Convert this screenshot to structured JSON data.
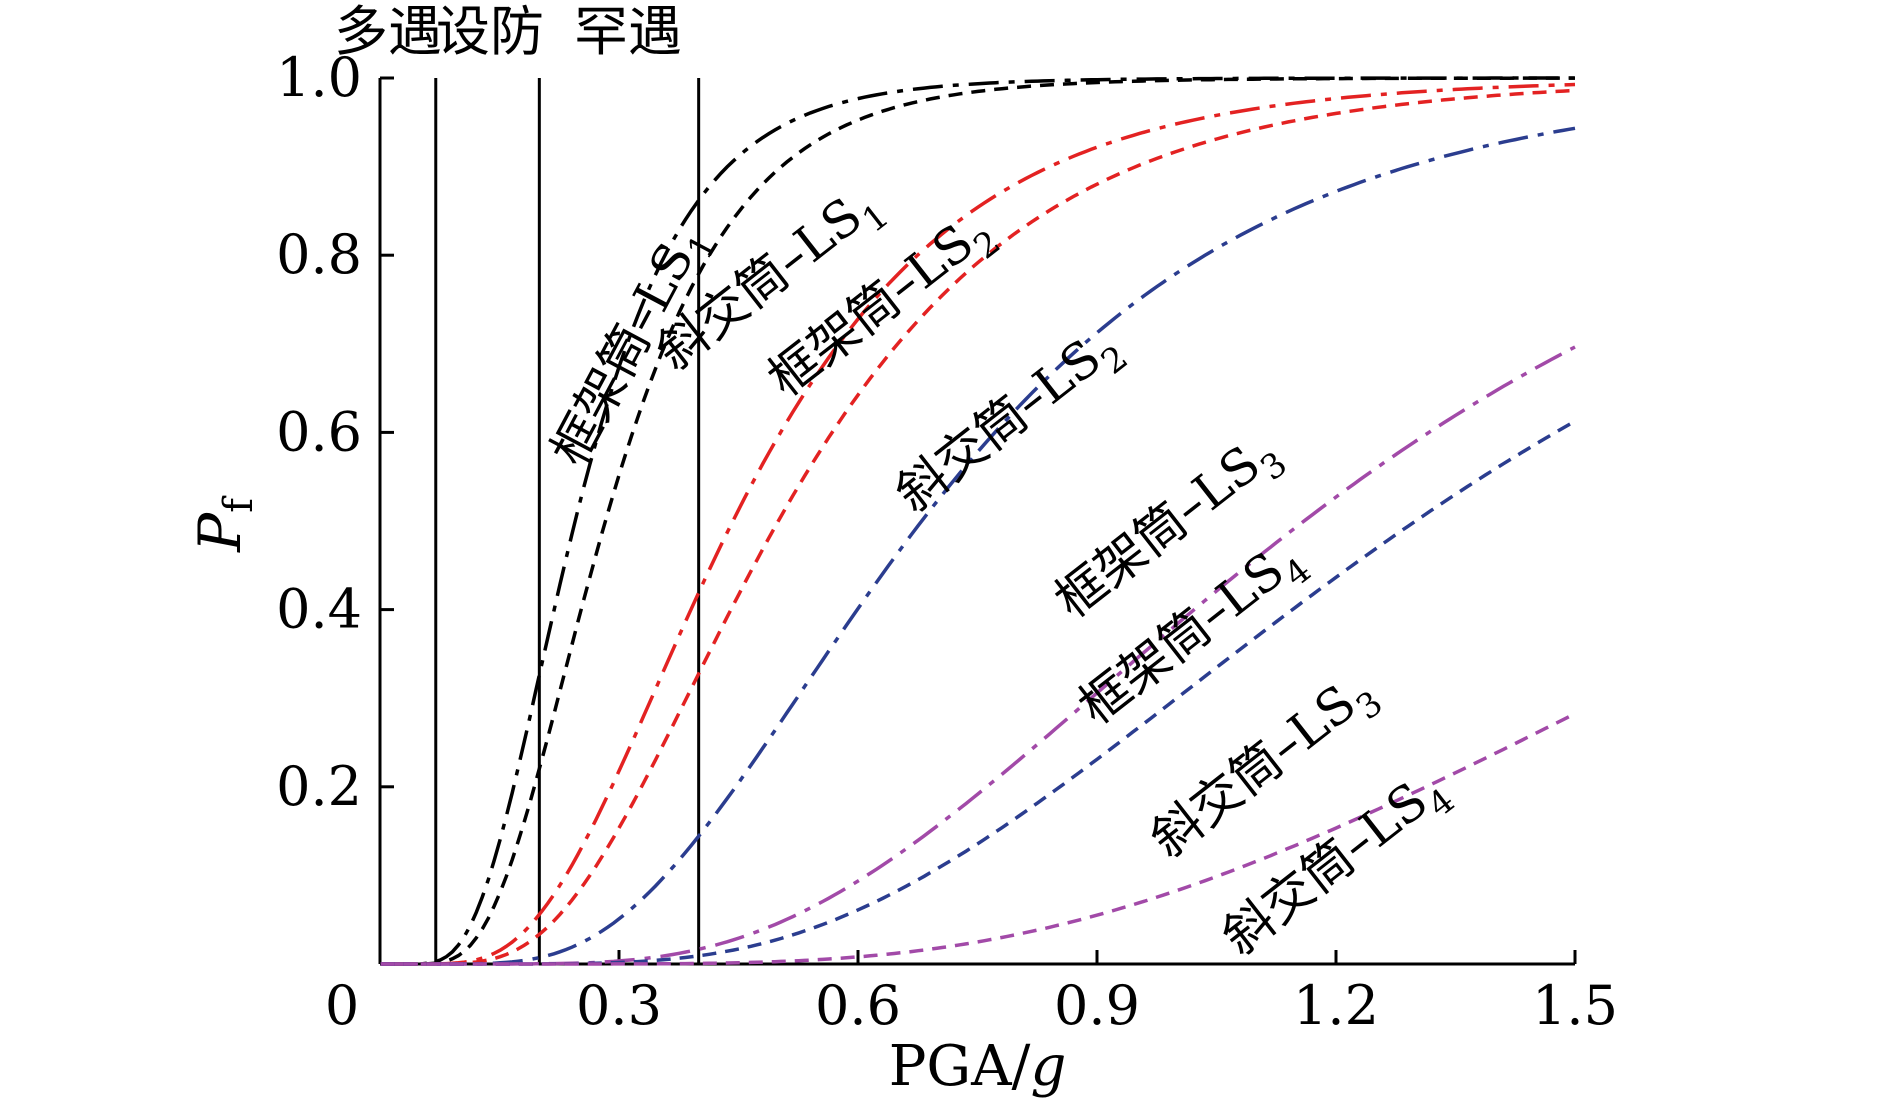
{
  "chart_data": {
    "type": "line",
    "title": "",
    "xlabel": "PGA/",
    "xlabel_italic": "g",
    "ylabel": "P",
    "ylabel_sub": "f",
    "xlim": [
      0,
      1.5
    ],
    "ylim": [
      0,
      1.0
    ],
    "x_ticks": [
      {
        "value": 0,
        "label": "0"
      },
      {
        "value": 0.3,
        "label": "0.3"
      },
      {
        "value": 0.6,
        "label": "0.6"
      },
      {
        "value": 0.9,
        "label": "0.9"
      },
      {
        "value": 1.2,
        "label": "1.2"
      },
      {
        "value": 1.5,
        "label": "1.5"
      }
    ],
    "y_ticks": [
      {
        "value": 0.2,
        "label": "0.2"
      },
      {
        "value": 0.4,
        "label": "0.4"
      },
      {
        "value": 0.6,
        "label": "0.6"
      },
      {
        "value": 0.8,
        "label": "0.8"
      },
      {
        "value": 1.0,
        "label": "1.0"
      }
    ],
    "reference_lines": [
      {
        "x": 0.07,
        "label": "多遇"
      },
      {
        "x": 0.2,
        "label": "设防"
      },
      {
        "x": 0.4,
        "label": "罕遇"
      }
    ],
    "series": [
      {
        "id": "frame-ls1",
        "name": "框架筒",
        "state": "LS",
        "state_sub": "1",
        "color": "#000000",
        "dash": "dashdot",
        "median": 0.245,
        "beta": 0.45,
        "label_at": {
          "x": 0.33,
          "y": 0.69,
          "angle": -62
        }
      },
      {
        "id": "diag-ls1",
        "name": "斜交筒",
        "state": "LS",
        "state_sub": "1",
        "color": "#000000",
        "dash": "dash",
        "median": 0.283,
        "beta": 0.45,
        "label_at": {
          "x": 0.5,
          "y": 0.76,
          "angle": -38
        }
      },
      {
        "id": "frame-ls2",
        "name": "框架筒",
        "state": "LS",
        "state_sub": "2",
        "color": "#e32222",
        "dash": "dashdot",
        "median": 0.443,
        "beta": 0.5,
        "label_at": {
          "x": 0.64,
          "y": 0.73,
          "angle": -38
        }
      },
      {
        "id": "diag-ls2",
        "name": "斜交筒",
        "state": "LS",
        "state_sub": "2",
        "color": "#e32222",
        "dash": "dash",
        "median": 0.5,
        "beta": 0.5,
        "label_at": {
          "x": 0.8,
          "y": 0.6,
          "angle": -38
        }
      },
      {
        "id": "frame-ls3",
        "name": "框架筒",
        "state": "LS",
        "state_sub": "3",
        "color": "#2b3d8f",
        "dash": "dashdot",
        "median": 0.68,
        "beta": 0.5,
        "label_at": {
          "x": 1.0,
          "y": 0.48,
          "angle": -38
        }
      },
      {
        "id": "frame-ls4",
        "name": "框架筒",
        "state": "LS",
        "state_sub": "4",
        "color": "#a24aa8",
        "dash": "dashdot",
        "median": 1.16,
        "beta": 0.5,
        "label_at": {
          "x": 1.03,
          "y": 0.36,
          "angle": -38
        }
      },
      {
        "id": "diag-ls3",
        "name": "斜交筒",
        "state": "LS",
        "state_sub": "3",
        "color": "#2b3d8f",
        "dash": "dash",
        "median": 1.3,
        "beta": 0.5,
        "label_at": {
          "x": 1.12,
          "y": 0.21,
          "angle": -38
        }
      },
      {
        "id": "diag-ls4",
        "name": "斜交筒",
        "state": "LS",
        "state_sub": "4",
        "color": "#a24aa8",
        "dash": "dash",
        "median": 2.0,
        "beta": 0.5,
        "label_at": {
          "x": 1.21,
          "y": 0.1,
          "angle": -38
        }
      }
    ]
  }
}
